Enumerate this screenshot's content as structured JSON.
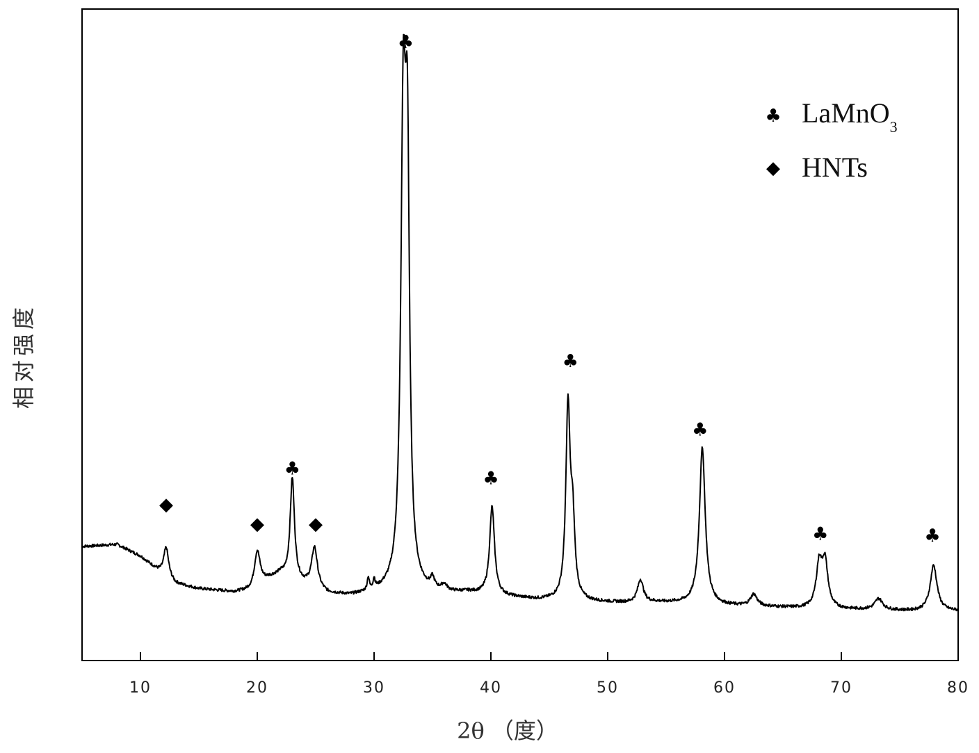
{
  "chart_data": {
    "type": "line",
    "xlabel": "2θ （度）",
    "ylabel": "相对强度",
    "xlim": [
      5,
      80
    ],
    "ylim": [
      0,
      100
    ],
    "x_ticks": [
      10,
      20,
      30,
      40,
      50,
      60,
      70,
      80
    ],
    "y_ticks_shown": false,
    "grid": false,
    "legend_position": "top-right",
    "legend": [
      {
        "symbol": "♣",
        "label_main": "LaMnO",
        "label_sub": "3"
      },
      {
        "symbol": "◆",
        "label_main": "HNTs",
        "label_sub": ""
      }
    ],
    "series": [
      {
        "baseline": [
          [
            5,
            17.5
          ],
          [
            8,
            17.8
          ],
          [
            10,
            16.0
          ],
          [
            11.5,
            13.8
          ],
          [
            13,
            11.8
          ],
          [
            15,
            11.0
          ],
          [
            18,
            10.5
          ],
          [
            19.5,
            10.7
          ],
          [
            21,
            12.5
          ],
          [
            22,
            13.2
          ],
          [
            24,
            11.6
          ],
          [
            26,
            10.2
          ],
          [
            28,
            9.9
          ],
          [
            31,
            10.5
          ],
          [
            34,
            10.5
          ],
          [
            36,
            10.2
          ],
          [
            38,
            10.4
          ],
          [
            41,
            9.8
          ],
          [
            44,
            9.3
          ],
          [
            46,
            9.2
          ],
          [
            48,
            9.0
          ],
          [
            52,
            8.8
          ],
          [
            54,
            8.9
          ],
          [
            56,
            8.8
          ],
          [
            60,
            8.4
          ],
          [
            64,
            8.2
          ],
          [
            68,
            7.9
          ],
          [
            72,
            7.8
          ],
          [
            76,
            7.6
          ],
          [
            80,
            7.6
          ]
        ],
        "peaks": [
          {
            "x": 12.2,
            "height": 4.5,
            "width": 0.25
          },
          {
            "x": 20.0,
            "height": 5.5,
            "width": 0.3
          },
          {
            "x": 23.0,
            "height": 15.5,
            "width": 0.22
          },
          {
            "x": 24.9,
            "height": 6.2,
            "width": 0.3
          },
          {
            "x": 29.5,
            "height": 2.0,
            "width": 0.1
          },
          {
            "x": 30.0,
            "height": 1.5,
            "width": 0.1
          },
          {
            "x": 32.5,
            "height": 68.0,
            "width": 0.25
          },
          {
            "x": 32.85,
            "height": 58.0,
            "width": 0.22
          },
          {
            "x": 35.0,
            "height": 1.5,
            "width": 0.2
          },
          {
            "x": 36.0,
            "height": 1.0,
            "width": 0.3
          },
          {
            "x": 40.1,
            "height": 13.5,
            "width": 0.25
          },
          {
            "x": 46.6,
            "height": 29.0,
            "width": 0.22
          },
          {
            "x": 47.0,
            "height": 11.0,
            "width": 0.22
          },
          {
            "x": 52.8,
            "height": 3.5,
            "width": 0.3
          },
          {
            "x": 58.1,
            "height": 24.0,
            "width": 0.3
          },
          {
            "x": 62.5,
            "height": 1.8,
            "width": 0.35
          },
          {
            "x": 68.1,
            "height": 6.5,
            "width": 0.3
          },
          {
            "x": 68.6,
            "height": 6.8,
            "width": 0.3
          },
          {
            "x": 73.2,
            "height": 1.7,
            "width": 0.4
          },
          {
            "x": 77.9,
            "height": 7.0,
            "width": 0.35
          }
        ]
      }
    ],
    "annotations": [
      {
        "symbol": "♣",
        "x": 32.7,
        "y": 95.0
      },
      {
        "symbol": "♣",
        "x": 23.0,
        "y": 29.5
      },
      {
        "symbol": "♣",
        "x": 40.0,
        "y": 28.0
      },
      {
        "symbol": "♣",
        "x": 46.8,
        "y": 46.0
      },
      {
        "symbol": "♣",
        "x": 57.9,
        "y": 35.5
      },
      {
        "symbol": "♣",
        "x": 68.2,
        "y": 19.5
      },
      {
        "symbol": "♣",
        "x": 77.8,
        "y": 19.2
      },
      {
        "symbol": "◆",
        "x": 12.2,
        "y": 24.0
      },
      {
        "symbol": "◆",
        "x": 20.0,
        "y": 21.0
      },
      {
        "symbol": "◆",
        "x": 25.0,
        "y": 21.0
      }
    ]
  }
}
